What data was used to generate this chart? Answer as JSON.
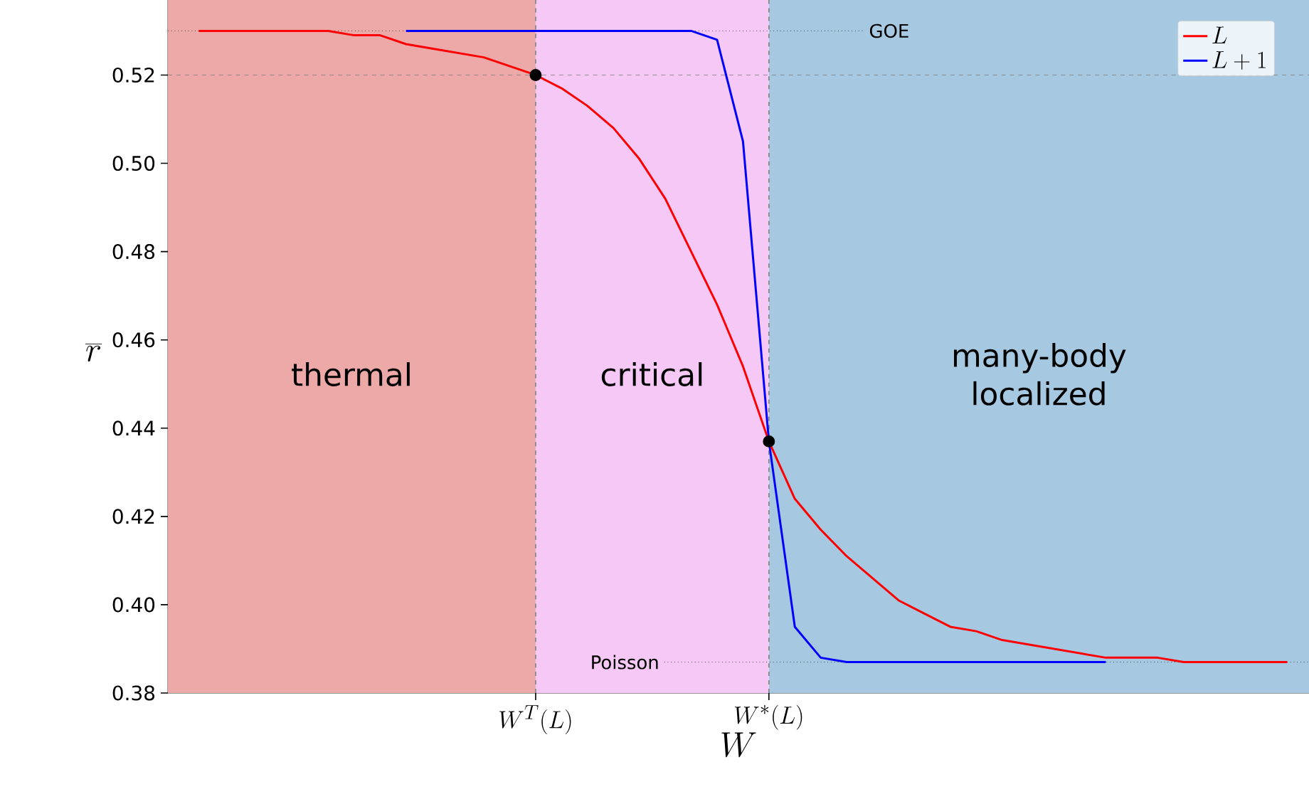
{
  "chart_data": {
    "type": "line",
    "xlabel": "W",
    "ylabel": "\\overline{r}",
    "categories": [
      null,
      null,
      null,
      null,
      null,
      null,
      null,
      null,
      null,
      null,
      null,
      null,
      null,
      "W^T(L)",
      null,
      null,
      null,
      null,
      null,
      null,
      null,
      null,
      "W^*(L)",
      null,
      null,
      null,
      null,
      null,
      null,
      null,
      null,
      null,
      null,
      null,
      null,
      null,
      null,
      null,
      null,
      null,
      null,
      null,
      null
    ],
    "ylim": [
      0.38,
      0.537
    ],
    "yticks": [
      {
        "value": 0.38,
        "label": "0.38"
      },
      {
        "value": 0.4,
        "label": "0.40"
      },
      {
        "value": 0.42,
        "label": "0.42"
      },
      {
        "value": 0.44,
        "label": "0.44"
      },
      {
        "value": 0.46,
        "label": "0.46"
      },
      {
        "value": 0.48,
        "label": "0.48"
      },
      {
        "value": 0.5,
        "label": "0.50"
      },
      {
        "value": 0.52,
        "label": "0.52"
      }
    ],
    "series": [
      {
        "name": "L+1",
        "color": "#0000ff",
        "values": [
          null,
          null,
          null,
          null,
          null,
          null,
          null,
          null,
          0.53,
          0.53,
          0.53,
          0.53,
          0.53,
          0.53,
          0.53,
          0.53,
          0.53,
          0.53,
          0.53,
          0.53,
          0.528,
          0.505,
          0.437,
          0.395,
          0.388,
          0.387,
          0.387,
          0.387,
          0.387,
          0.387,
          0.387,
          0.387,
          0.387,
          0.387,
          0.387,
          0.387,
          null,
          null,
          null,
          null,
          null,
          null,
          null
        ]
      },
      {
        "name": "L",
        "color": "#ff0000",
        "values": [
          0.53,
          0.53,
          0.53,
          0.53,
          0.53,
          0.53,
          0.529,
          0.529,
          0.527,
          0.526,
          0.525,
          0.524,
          0.522,
          0.52,
          0.517,
          0.513,
          0.508,
          0.501,
          0.492,
          0.48,
          0.468,
          0.454,
          0.437,
          0.424,
          0.417,
          0.411,
          0.406,
          0.401,
          0.398,
          0.395,
          0.394,
          0.392,
          0.391,
          0.39,
          0.389,
          0.388,
          0.388,
          0.388,
          0.387,
          0.387,
          0.387,
          0.387,
          0.387
        ]
      },
      {
        "type": "scatter",
        "color": "#000000",
        "marker": "circle",
        "values": [
          null,
          null,
          null,
          null,
          null,
          null,
          null,
          null,
          null,
          null,
          null,
          null,
          null,
          0.52,
          null,
          null,
          null,
          null,
          null,
          null,
          null,
          null,
          0.437,
          null,
          null,
          null,
          null,
          null,
          null,
          null,
          null,
          null,
          null,
          null,
          null,
          null,
          null,
          null,
          null,
          null,
          null,
          null,
          null
        ]
      }
    ],
    "bands": [
      {
        "axis": "x",
        "from": "W^T(L)",
        "to": "W^*(L)",
        "label": "critical",
        "color": "#f5c8f5"
      }
    ],
    "annotations": [
      "thermal",
      "many-body localized"
    ],
    "ref_lines": [
      {
        "axis": "y",
        "value": 0.53,
        "label": "GOE",
        "color": "#000000",
        "line_style": "dotted"
      },
      {
        "axis": "y",
        "value": 0.387,
        "label": "Poisson",
        "color": "#000000",
        "line_style": "dotted"
      },
      {
        "axis": "y",
        "value": 0.52,
        "color": "#808080",
        "line_style": "dashed"
      },
      {
        "axis": "x",
        "value": "W^T(L)",
        "color": "#808080",
        "line_style": "dashed"
      },
      {
        "axis": "x",
        "value": "W^*(L)",
        "color": "#808080",
        "line_style": "dashed"
      }
    ],
    "legend": "top right",
    "marker": "none",
    "line_style": "solid"
  }
}
